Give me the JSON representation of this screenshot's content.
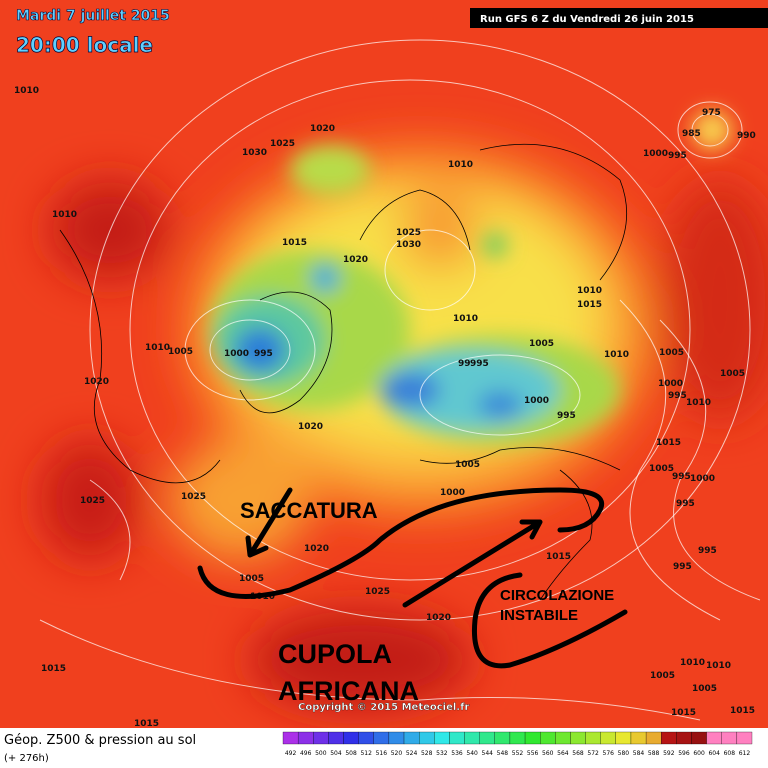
{
  "header": {
    "date": "Mardi 7 juillet 2015",
    "time": "20:00 locale",
    "run": "Run GFS 6 Z du Vendredi 26 juin 2015"
  },
  "annotations": {
    "trough": "SACCATURA",
    "ridge_line1": "CUPOLA",
    "ridge_line2": "AFRICANA",
    "circulation_line1": "CIRCOLAZIONE",
    "circulation_line2": "INSTABILE"
  },
  "copyright": "Copyright © 2015 Meteociel.fr",
  "footer": {
    "title": "Géop. Z500 & pression au sol",
    "lead_time": "(+ 276h)"
  },
  "scale": [
    492,
    496,
    500,
    504,
    508,
    512,
    516,
    520,
    524,
    528,
    532,
    536,
    540,
    544,
    548,
    552,
    556,
    560,
    564,
    568,
    572,
    576,
    580,
    584,
    588,
    592,
    596,
    600,
    604,
    608,
    612
  ],
  "pressure_labels": [
    "1030",
    "1025",
    "1020",
    "1010",
    "1000",
    "995",
    "975",
    "985",
    "990",
    "1010",
    "1015",
    "1020",
    "1025",
    "1030",
    "1010",
    "1005",
    "1000",
    "995",
    "1020",
    "1010",
    "1015",
    "1010",
    "1005",
    "1010",
    "1005",
    "1000",
    "995",
    "1010",
    "1005",
    "99",
    "995",
    "1000",
    "995",
    "1020",
    "1015",
    "1005",
    "1005",
    "995",
    "1000",
    "1000",
    "1025",
    "1025",
    "995",
    "1020",
    "1015",
    "995",
    "995",
    "1005",
    "1010",
    "1025",
    "1020",
    "1015",
    "1010",
    "1010",
    "1005",
    "1005",
    "1015",
    "1015",
    "1015",
    "1010"
  ]
}
